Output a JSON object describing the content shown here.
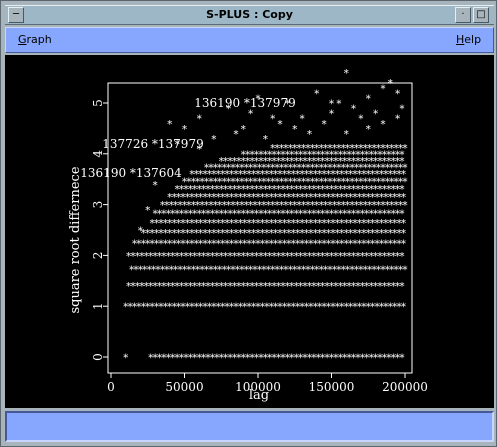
{
  "window": {
    "title": "S-PLUS : Copy"
  },
  "menu": {
    "graph_mnemonic": "G",
    "graph_rest": "raph",
    "help_mnemonic": "H",
    "help_rest": "elp"
  },
  "chart_data": {
    "type": "scatter",
    "xlabel": "lag",
    "ylabel": "square root differnece",
    "xlim": [
      0,
      200000
    ],
    "ylim": [
      0,
      5.5
    ],
    "xticks": [
      0,
      50000,
      100000,
      150000,
      200000
    ],
    "yticks": [
      0,
      1,
      2,
      3,
      4,
      5
    ],
    "marker": "*",
    "annotations": [
      {
        "text": "136190 *137979",
        "x": 150000,
        "y": 5.4
      },
      {
        "text": "137726 *137979",
        "x": 20000,
        "y": 4.5
      },
      {
        "text": "136190 *137604",
        "x": 35000,
        "y": 3.9
      }
    ],
    "point_bands": [
      {
        "y": 0.0,
        "x_start": 27000,
        "x_end": 200000
      },
      {
        "y": 1.0,
        "x_start": 10000,
        "x_end": 200000
      },
      {
        "y": 1.41,
        "x_start": 12000,
        "x_end": 200000
      },
      {
        "y": 1.73,
        "x_start": 14000,
        "x_end": 200000
      },
      {
        "y": 2.0,
        "x_start": 12000,
        "x_end": 200000
      },
      {
        "y": 2.24,
        "x_start": 16000,
        "x_end": 200000
      },
      {
        "y": 2.45,
        "x_start": 22000,
        "x_end": 200000
      },
      {
        "y": 2.65,
        "x_start": 28000,
        "x_end": 200000
      },
      {
        "y": 2.83,
        "x_start": 30000,
        "x_end": 200000
      },
      {
        "y": 3.0,
        "x_start": 35000,
        "x_end": 200000
      },
      {
        "y": 3.16,
        "x_start": 40000,
        "x_end": 200000
      },
      {
        "y": 3.32,
        "x_start": 45000,
        "x_end": 200000
      },
      {
        "y": 3.46,
        "x_start": 50000,
        "x_end": 200000
      },
      {
        "y": 3.61,
        "x_start": 55000,
        "x_end": 200000
      },
      {
        "y": 3.74,
        "x_start": 65000,
        "x_end": 200000
      },
      {
        "y": 3.87,
        "x_start": 75000,
        "x_end": 200000
      },
      {
        "y": 4.0,
        "x_start": 90000,
        "x_end": 200000
      },
      {
        "y": 4.12,
        "x_start": 110000,
        "x_end": 200000
      }
    ],
    "outliers": [
      [
        10000,
        0.0
      ],
      [
        40000,
        4.6
      ],
      [
        50000,
        4.5
      ],
      [
        60000,
        4.7
      ],
      [
        80000,
        4.9
      ],
      [
        95000,
        4.8
      ],
      [
        100000,
        5.1
      ],
      [
        115000,
        4.6
      ],
      [
        120000,
        5.0
      ],
      [
        130000,
        4.7
      ],
      [
        140000,
        5.2
      ],
      [
        150000,
        4.8
      ],
      [
        155000,
        5.0
      ],
      [
        160000,
        5.6
      ],
      [
        165000,
        4.9
      ],
      [
        175000,
        5.1
      ],
      [
        185000,
        5.3
      ],
      [
        190000,
        5.4
      ],
      [
        195000,
        5.2
      ],
      [
        198000,
        4.9
      ],
      [
        30000,
        3.4
      ],
      [
        25000,
        2.9
      ],
      [
        45000,
        4.2
      ],
      [
        70000,
        4.3
      ],
      [
        85000,
        4.4
      ],
      [
        125000,
        4.5
      ],
      [
        145000,
        4.6
      ],
      [
        170000,
        4.7
      ],
      [
        180000,
        4.8
      ],
      [
        20000,
        2.5
      ],
      [
        60000,
        4.1
      ],
      [
        90000,
        4.5
      ],
      [
        105000,
        4.3
      ],
      [
        135000,
        4.4
      ],
      [
        160000,
        4.4
      ],
      [
        175000,
        4.5
      ],
      [
        185000,
        4.6
      ],
      [
        195000,
        4.7
      ],
      [
        110000,
        4.7
      ],
      [
        150000,
        5.0
      ]
    ]
  }
}
